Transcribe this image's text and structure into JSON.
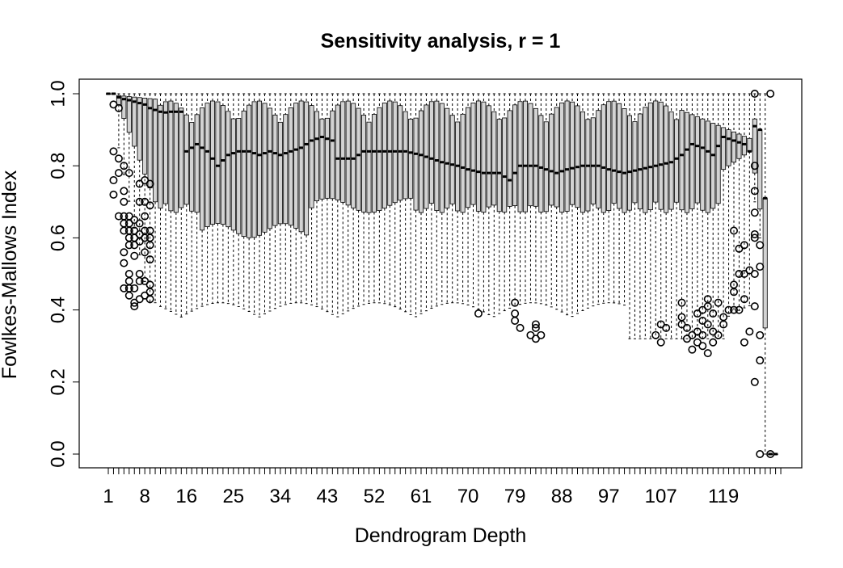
{
  "chart_data": {
    "type": "boxplot",
    "title": "Sensitivity analysis, r = 1",
    "xlabel": "Dendrogram Depth",
    "ylabel": "Fowlkes-Mallows Index",
    "ylim": [
      0,
      1
    ],
    "x_range": [
      1,
      130
    ],
    "y_ticks": [
      "0.0",
      "0.2",
      "0.4",
      "0.6",
      "0.8",
      "1.0"
    ],
    "x_tick_labels": [
      "1",
      "8",
      "16",
      "25",
      "34",
      "43",
      "52",
      "61",
      "70",
      "79",
      "88",
      "97",
      "107",
      "119"
    ],
    "box_fill": "#d3d3d3",
    "median_anchors": [
      [
        1,
        1.0
      ],
      [
        2,
        1.0
      ],
      [
        3,
        0.99
      ],
      [
        4,
        0.985
      ],
      [
        5,
        0.982
      ],
      [
        6,
        0.978
      ],
      [
        7,
        0.974
      ],
      [
        8,
        0.97
      ],
      [
        9,
        0.96
      ],
      [
        10,
        0.955
      ],
      [
        11,
        0.95
      ],
      [
        12,
        0.948
      ],
      [
        13,
        0.95
      ],
      [
        14,
        0.95
      ],
      [
        15,
        0.95
      ],
      [
        16,
        0.84
      ],
      [
        18,
        0.86
      ],
      [
        20,
        0.84
      ],
      [
        22,
        0.8
      ],
      [
        24,
        0.83
      ],
      [
        26,
        0.84
      ],
      [
        28,
        0.84
      ],
      [
        30,
        0.83
      ],
      [
        32,
        0.84
      ],
      [
        34,
        0.83
      ],
      [
        36,
        0.84
      ],
      [
        38,
        0.85
      ],
      [
        40,
        0.87
      ],
      [
        42,
        0.88
      ],
      [
        44,
        0.87
      ],
      [
        45,
        0.82
      ],
      [
        48,
        0.82
      ],
      [
        50,
        0.84
      ],
      [
        52,
        0.84
      ],
      [
        55,
        0.84
      ],
      [
        58,
        0.84
      ],
      [
        61,
        0.83
      ],
      [
        63,
        0.82
      ],
      [
        65,
        0.81
      ],
      [
        68,
        0.8
      ],
      [
        70,
        0.79
      ],
      [
        73,
        0.78
      ],
      [
        76,
        0.78
      ],
      [
        78,
        0.76
      ],
      [
        80,
        0.8
      ],
      [
        83,
        0.8
      ],
      [
        85,
        0.79
      ],
      [
        87,
        0.78
      ],
      [
        89,
        0.79
      ],
      [
        92,
        0.8
      ],
      [
        95,
        0.8
      ],
      [
        97,
        0.79
      ],
      [
        100,
        0.78
      ],
      [
        103,
        0.79
      ],
      [
        106,
        0.8
      ],
      [
        109,
        0.81
      ],
      [
        111,
        0.83
      ],
      [
        113,
        0.86
      ],
      [
        115,
        0.85
      ],
      [
        117,
        0.83
      ],
      [
        119,
        0.88
      ],
      [
        121,
        0.87
      ],
      [
        123,
        0.86
      ],
      [
        124,
        0.84
      ],
      [
        125,
        0.91
      ]
    ],
    "outlier_groups": [
      {
        "depth": 2,
        "values": [
          0.84,
          0.76,
          0.72,
          0.97
        ]
      },
      {
        "depth": 3,
        "values": [
          0.82,
          0.78,
          0.66,
          0.96
        ]
      },
      {
        "depth": 4,
        "values": [
          0.8,
          0.73,
          0.7,
          0.66,
          0.64,
          0.62,
          0.56,
          0.53,
          0.46
        ]
      },
      {
        "depth": 5,
        "values": [
          0.78,
          0.66,
          0.64,
          0.62,
          0.6,
          0.58,
          0.5,
          0.48,
          0.46,
          0.44
        ]
      },
      {
        "depth": 6,
        "values": [
          0.65,
          0.62,
          0.6,
          0.58,
          0.55,
          0.46,
          0.42,
          0.41
        ]
      },
      {
        "depth": 7,
        "values": [
          0.75,
          0.7,
          0.64,
          0.61,
          0.59,
          0.5,
          0.48,
          0.43
        ]
      },
      {
        "depth": 8,
        "values": [
          0.76,
          0.7,
          0.66,
          0.62,
          0.6,
          0.56,
          0.48,
          0.44
        ]
      },
      {
        "depth": 9,
        "values": [
          0.75,
          0.69,
          0.62,
          0.6,
          0.58,
          0.54,
          0.47,
          0.45,
          0.43
        ]
      },
      {
        "depth": 72,
        "values": [
          0.39
        ]
      },
      {
        "depth": 79,
        "values": [
          0.42,
          0.39,
          0.37
        ]
      },
      {
        "depth": 80,
        "values": [
          0.35
        ]
      },
      {
        "depth": 82,
        "values": [
          0.33
        ]
      },
      {
        "depth": 83,
        "values": [
          0.36,
          0.35,
          0.32
        ]
      },
      {
        "depth": 84,
        "values": [
          0.33
        ]
      },
      {
        "depth": 106,
        "values": [
          0.33
        ]
      },
      {
        "depth": 107,
        "values": [
          0.36,
          0.31
        ]
      },
      {
        "depth": 108,
        "values": [
          0.35
        ]
      },
      {
        "depth": 111,
        "values": [
          0.42,
          0.38,
          0.36
        ]
      },
      {
        "depth": 112,
        "values": [
          0.35,
          0.32
        ]
      },
      {
        "depth": 113,
        "values": [
          0.33,
          0.29
        ]
      },
      {
        "depth": 114,
        "values": [
          0.39,
          0.34,
          0.31
        ]
      },
      {
        "depth": 115,
        "values": [
          0.4,
          0.37,
          0.33,
          0.3
        ]
      },
      {
        "depth": 116,
        "values": [
          0.43,
          0.41,
          0.36,
          0.28
        ]
      },
      {
        "depth": 117,
        "values": [
          0.39,
          0.34,
          0.31
        ]
      },
      {
        "depth": 118,
        "values": [
          0.42,
          0.33
        ]
      },
      {
        "depth": 119,
        "values": [
          0.38,
          0.36
        ]
      },
      {
        "depth": 120,
        "values": [
          0.4
        ]
      },
      {
        "depth": 121,
        "values": [
          0.47,
          0.45,
          0.4,
          0.62
        ]
      },
      {
        "depth": 122,
        "values": [
          0.57,
          0.5,
          0.4
        ]
      },
      {
        "depth": 123,
        "values": [
          0.58,
          0.5,
          0.43,
          0.31
        ]
      },
      {
        "depth": 124,
        "values": [
          0.51,
          0.34
        ]
      },
      {
        "depth": 125,
        "values": [
          0.8,
          0.73,
          0.67,
          0.61,
          0.6,
          0.5,
          0.41,
          0.2,
          1.0
        ]
      },
      {
        "depth": 126,
        "values": [
          0.58,
          0.52,
          0.33,
          0.26,
          0.0
        ]
      },
      {
        "depth": 128,
        "values": [
          1.0,
          0.0
        ]
      }
    ]
  }
}
